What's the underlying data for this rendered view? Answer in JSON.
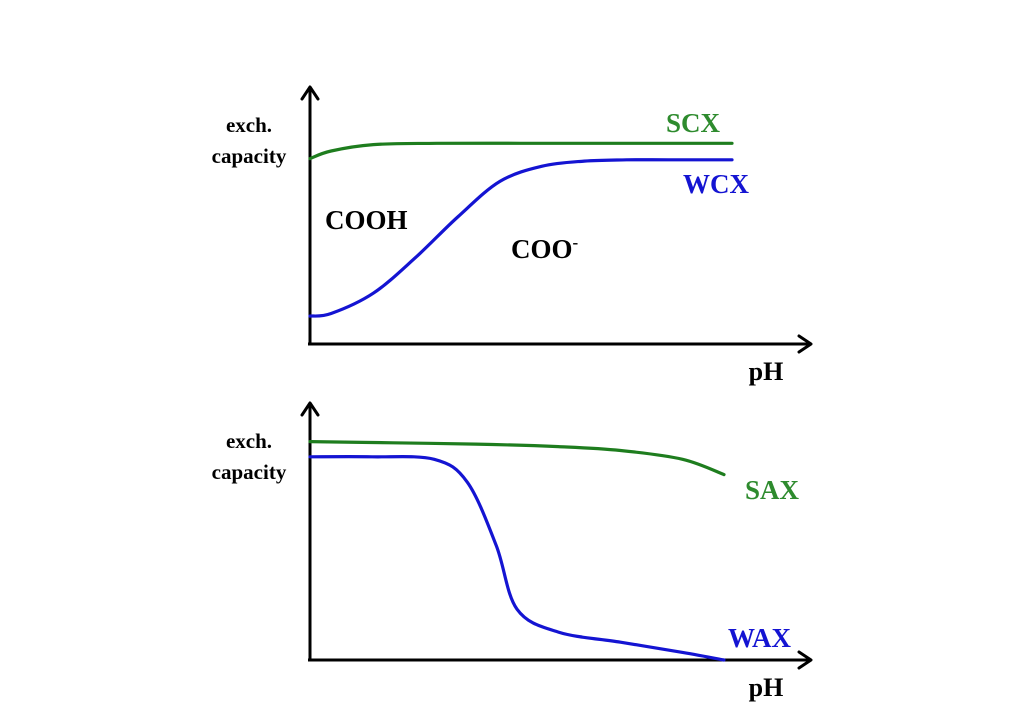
{
  "colors": {
    "axis": "#000000",
    "green_series": "#1e7d1e",
    "green_label": "#2e8b2e",
    "blue_series": "#1414d2",
    "text": "#000000"
  },
  "chart_data": [
    {
      "type": "line",
      "panel": "top",
      "ylabel_lines": [
        "exch.",
        "capacity"
      ],
      "xlabel": "pH",
      "region_labels": {
        "acid": "COOH",
        "base_text": "COO",
        "base_superscript": "-"
      },
      "axis_ticks": "none",
      "series": [
        {
          "name": "SCX",
          "color": "#1e7d1e",
          "trend": "nearly constant high capacity across pH",
          "x": [
            0,
            0.05,
            0.15,
            0.3,
            0.5,
            0.7,
            0.85,
            1.0
          ],
          "y": [
            0.73,
            0.76,
            0.785,
            0.79,
            0.79,
            0.79,
            0.79,
            0.79
          ]
        },
        {
          "name": "WCX",
          "color": "#1414d2",
          "trend": "low at acidic pH, sigmoidal rise to plateau at basic pH",
          "x": [
            0,
            0.05,
            0.15,
            0.25,
            0.35,
            0.45,
            0.55,
            0.65,
            0.75,
            0.85,
            1.0
          ],
          "y": [
            0.11,
            0.12,
            0.2,
            0.34,
            0.5,
            0.64,
            0.7,
            0.72,
            0.725,
            0.725,
            0.725
          ]
        }
      ]
    },
    {
      "type": "line",
      "panel": "bottom",
      "ylabel_lines": [
        "exch.",
        "capacity"
      ],
      "xlabel": "pH",
      "axis_ticks": "none",
      "series": [
        {
          "name": "SAX",
          "color": "#1e7d1e",
          "trend": "nearly constant, slight decrease at high pH",
          "x": [
            0,
            0.2,
            0.4,
            0.6,
            0.75,
            0.9,
            1.0
          ],
          "y": [
            0.86,
            0.855,
            0.85,
            0.84,
            0.825,
            0.79,
            0.73
          ]
        },
        {
          "name": "WAX",
          "color": "#1414d2",
          "trend": "high at acidic pH, sharp drop near mid pH, approaches zero at basic pH",
          "x": [
            0,
            0.15,
            0.3,
            0.38,
            0.45,
            0.5,
            0.6,
            0.75,
            0.9,
            1.0
          ],
          "y": [
            0.8,
            0.8,
            0.79,
            0.7,
            0.45,
            0.2,
            0.11,
            0.07,
            0.03,
            0.0
          ]
        }
      ]
    }
  ]
}
